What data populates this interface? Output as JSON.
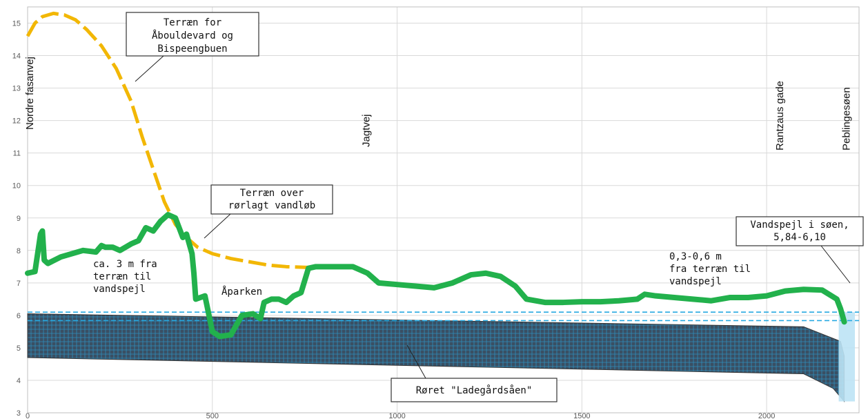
{
  "chart_data": {
    "type": "line",
    "xlim": [
      0,
      2250
    ],
    "ylim": [
      3,
      15.5
    ],
    "x_ticks": [
      0,
      500,
      1000,
      1500,
      2000
    ],
    "y_ticks": [
      3,
      4,
      5,
      6,
      7,
      8,
      9,
      10,
      11,
      12,
      13,
      14,
      15
    ],
    "grid": true,
    "colors": {
      "terrain_upper": "#f2b705",
      "terrain_pipe": "#22b14c",
      "pipe_fill": "#3a4f63",
      "pipe_hatch": "#27a9e1",
      "water_line": "#27a9e1"
    },
    "series": [
      {
        "label": "Terræn for Åbouldevard og Bispeengbuen",
        "style": "dashed",
        "x": [
          0,
          20,
          40,
          70,
          100,
          130,
          160,
          200,
          240,
          280,
          310,
          340,
          370,
          400,
          430,
          460,
          500,
          550,
          600,
          650,
          700,
          750,
          780
        ],
        "y": [
          14.6,
          15.0,
          15.2,
          15.3,
          15.25,
          15.1,
          14.8,
          14.3,
          13.6,
          12.6,
          11.5,
          10.5,
          9.5,
          8.8,
          8.4,
          8.1,
          7.9,
          7.75,
          7.65,
          7.55,
          7.5,
          7.48,
          7.47
        ]
      },
      {
        "label": "Terræn over rørlagt vandløb",
        "style": "solid",
        "x": [
          0,
          20,
          35,
          40,
          45,
          55,
          90,
          150,
          185,
          200,
          210,
          230,
          250,
          280,
          300,
          320,
          340,
          360,
          380,
          400,
          410,
          420,
          430,
          445,
          450,
          455,
          480,
          500,
          520,
          550,
          580,
          610,
          630,
          640,
          660,
          680,
          700,
          720,
          740,
          760,
          780,
          820,
          880,
          920,
          950,
          1000,
          1050,
          1100,
          1150,
          1200,
          1240,
          1280,
          1320,
          1350,
          1400,
          1450,
          1500,
          1550,
          1600,
          1650,
          1670,
          1700,
          1750,
          1800,
          1850,
          1900,
          1950,
          2000,
          2050,
          2100,
          2150,
          2190,
          2200,
          2210
        ],
        "y": [
          7.3,
          7.35,
          8.5,
          8.6,
          7.7,
          7.6,
          7.8,
          8.0,
          7.95,
          8.15,
          8.1,
          8.1,
          8.0,
          8.2,
          8.3,
          8.7,
          8.6,
          8.9,
          9.1,
          9.0,
          8.7,
          8.4,
          8.5,
          7.9,
          7.3,
          6.5,
          6.6,
          5.5,
          5.35,
          5.4,
          6.0,
          6.05,
          5.9,
          6.4,
          6.5,
          6.5,
          6.4,
          6.6,
          6.7,
          7.45,
          7.5,
          7.5,
          7.5,
          7.3,
          7.0,
          6.95,
          6.9,
          6.85,
          7.0,
          7.25,
          7.3,
          7.2,
          6.9,
          6.5,
          6.4,
          6.4,
          6.42,
          6.42,
          6.45,
          6.5,
          6.65,
          6.6,
          6.55,
          6.5,
          6.45,
          6.55,
          6.55,
          6.6,
          6.75,
          6.8,
          6.78,
          6.5,
          6.2,
          5.8
        ]
      }
    ],
    "pipe": {
      "label": "Røret \"Ladegårdsåen\"",
      "top_x": [
        0,
        2100,
        2200,
        2210
      ],
      "top_y": [
        6.05,
        5.65,
        5.2,
        4.75
      ],
      "bottom_x": [
        0,
        2100,
        2180,
        2210
      ],
      "bottom_y": [
        4.7,
        4.2,
        3.75,
        3.35
      ]
    },
    "water_levels": [
      6.1,
      5.84
    ],
    "annotations": {
      "terrain_upper": [
        "Terræn for",
        "Åbouldevard og",
        "Bispeengbuen"
      ],
      "terrain_pipe": [
        "Terræn over",
        "rørlagt vandløb"
      ],
      "left_note": [
        "ca. 3 m fra",
        "terræn til",
        "vandspejl"
      ],
      "aparken": "Åparken",
      "right_note": [
        "0,3-0,6 m",
        "fra terræn til",
        "vandspejl"
      ],
      "lake_level": [
        "Vandspejl i søen,",
        "5,84-6,10"
      ],
      "pipe_name": "Røret \"Ladegårdsåen\""
    },
    "streets": [
      {
        "name": "Nordre fasanvej",
        "x": 0
      },
      {
        "name": "Jagtvej",
        "x": 910
      },
      {
        "name": "Rantzaus gade",
        "x": 2030
      },
      {
        "name": "Peblingesøen",
        "x": 2210
      }
    ]
  }
}
